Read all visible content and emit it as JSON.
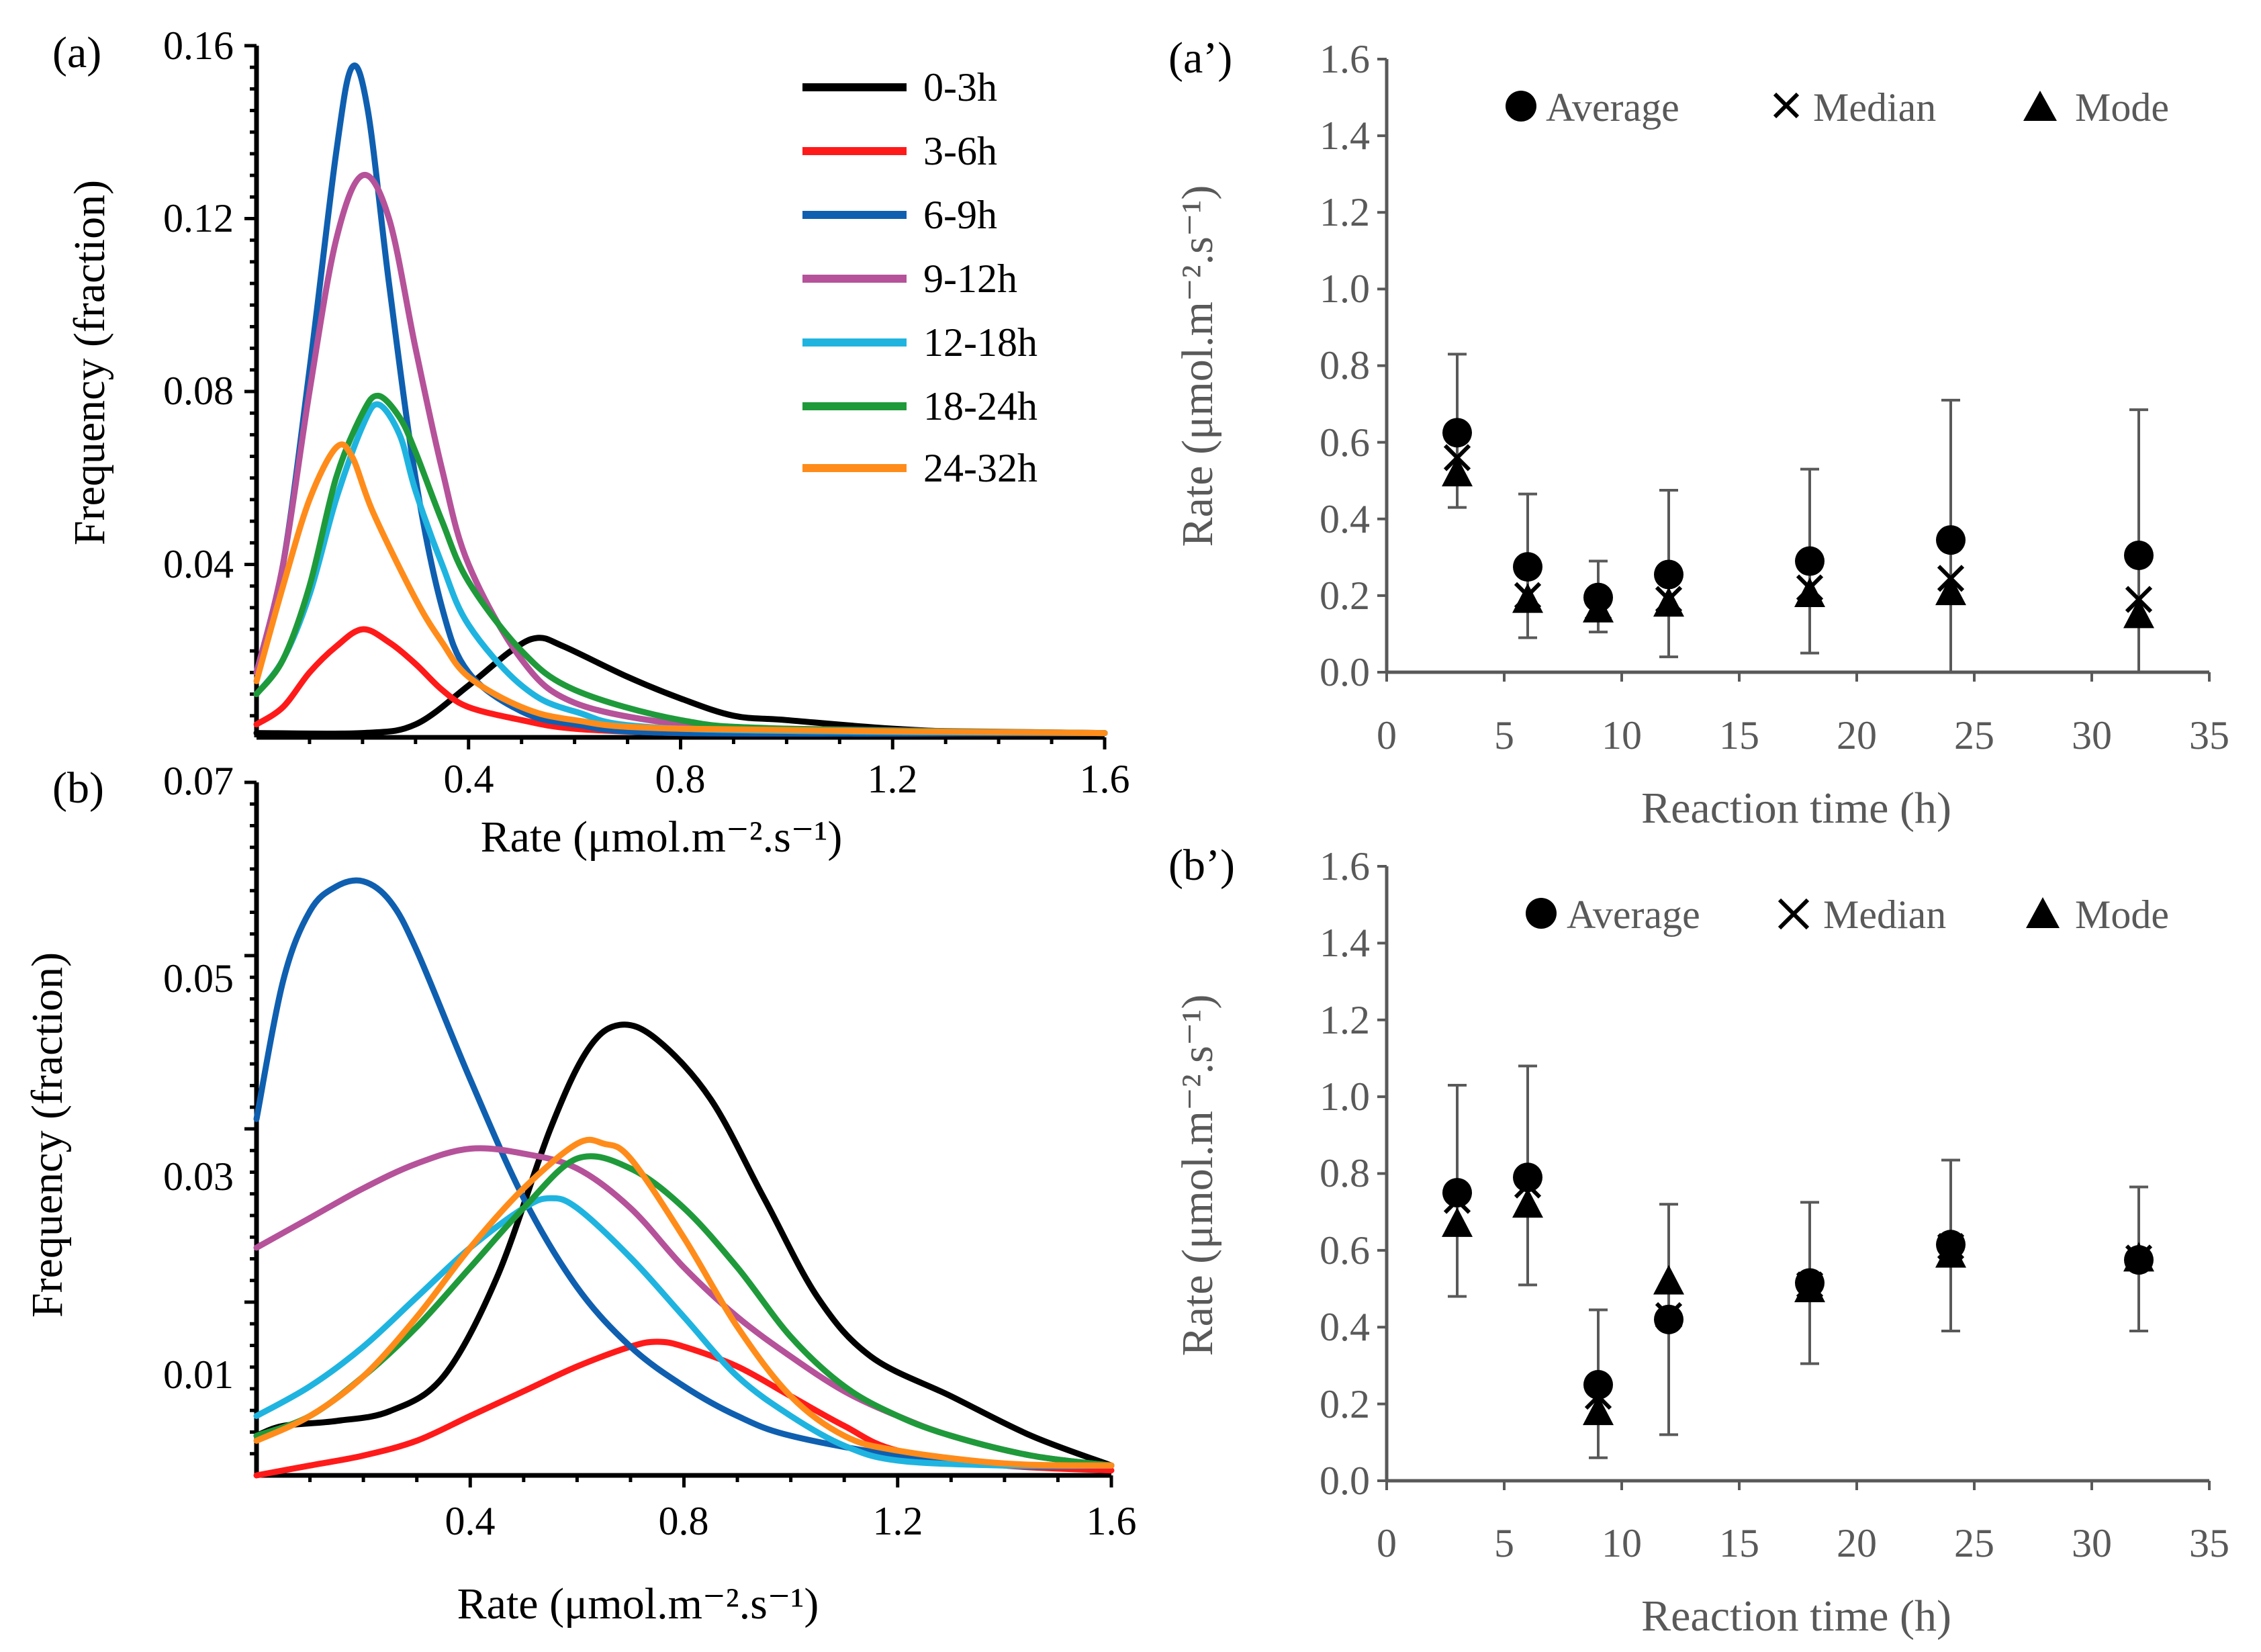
{
  "colors": {
    "0-3h": "#000000",
    "3-6h": "#ff1a1a",
    "6-9h": "#0f5fb0",
    "9-12h": "#b5529a",
    "12-18h": "#1fb4e0",
    "18-24h": "#1f9a3a",
    "24-32h": "#ff8c1a",
    "axis_gray": "#595959"
  },
  "chart_data": [
    {
      "id": "a",
      "panel_label": "(a)",
      "type": "line",
      "xlabel": "Rate (μmol.m⁻².s⁻¹)",
      "ylabel": "Frequency (fraction)",
      "xlim": [
        0,
        1.6
      ],
      "ylim": [
        0,
        0.16
      ],
      "xticks": [
        "0.4",
        "0.8",
        "1.2",
        "1.6"
      ],
      "yticks": [
        "0.04",
        "0.08",
        "0.12",
        "0.16"
      ],
      "legend": [
        "0-3h",
        "3-6h",
        "6-9h",
        "9-12h",
        "12-18h",
        "18-24h",
        "24-32h"
      ],
      "series": [
        {
          "name": "0-3h",
          "points": [
            [
              0,
              0.001
            ],
            [
              0.2,
              0.001
            ],
            [
              0.3,
              0.003
            ],
            [
              0.4,
              0.012
            ],
            [
              0.48,
              0.02
            ],
            [
              0.53,
              0.023
            ],
            [
              0.58,
              0.021
            ],
            [
              0.7,
              0.014
            ],
            [
              0.8,
              0.009
            ],
            [
              0.9,
              0.005
            ],
            [
              1.0,
              0.004
            ],
            [
              1.2,
              0.002
            ],
            [
              1.4,
              0.001
            ],
            [
              1.6,
              0.001
            ]
          ]
        },
        {
          "name": "3-6h",
          "points": [
            [
              0,
              0.003
            ],
            [
              0.05,
              0.007
            ],
            [
              0.1,
              0.015
            ],
            [
              0.15,
              0.021
            ],
            [
              0.2,
              0.025
            ],
            [
              0.25,
              0.022
            ],
            [
              0.3,
              0.017
            ],
            [
              0.35,
              0.011
            ],
            [
              0.4,
              0.007
            ],
            [
              0.5,
              0.004
            ],
            [
              0.6,
              0.002
            ],
            [
              0.8,
              0.001
            ],
            [
              1.0,
              0.001
            ],
            [
              1.6,
              0.001
            ]
          ]
        },
        {
          "name": "6-9h",
          "points": [
            [
              0,
              0.015
            ],
            [
              0.05,
              0.04
            ],
            [
              0.1,
              0.085
            ],
            [
              0.15,
              0.135
            ],
            [
              0.18,
              0.155
            ],
            [
              0.21,
              0.145
            ],
            [
              0.25,
              0.105
            ],
            [
              0.3,
              0.06
            ],
            [
              0.35,
              0.03
            ],
            [
              0.4,
              0.015
            ],
            [
              0.5,
              0.006
            ],
            [
              0.6,
              0.003
            ],
            [
              0.8,
              0.001
            ],
            [
              1.6,
              0.001
            ]
          ]
        },
        {
          "name": "9-12h",
          "points": [
            [
              0,
              0.015
            ],
            [
              0.05,
              0.04
            ],
            [
              0.1,
              0.08
            ],
            [
              0.15,
              0.115
            ],
            [
              0.2,
              0.13
            ],
            [
              0.25,
              0.12
            ],
            [
              0.3,
              0.09
            ],
            [
              0.35,
              0.062
            ],
            [
              0.4,
              0.04
            ],
            [
              0.5,
              0.018
            ],
            [
              0.6,
              0.008
            ],
            [
              0.8,
              0.003
            ],
            [
              1.0,
              0.002
            ],
            [
              1.6,
              0.001
            ]
          ]
        },
        {
          "name": "12-18h",
          "points": [
            [
              0,
              0.01
            ],
            [
              0.05,
              0.018
            ],
            [
              0.1,
              0.033
            ],
            [
              0.15,
              0.055
            ],
            [
              0.2,
              0.072
            ],
            [
              0.23,
              0.077
            ],
            [
              0.27,
              0.07
            ],
            [
              0.3,
              0.057
            ],
            [
              0.35,
              0.04
            ],
            [
              0.4,
              0.026
            ],
            [
              0.5,
              0.012
            ],
            [
              0.6,
              0.006
            ],
            [
              0.8,
              0.002
            ],
            [
              1.6,
              0.001
            ]
          ]
        },
        {
          "name": "18-24h",
          "points": [
            [
              0,
              0.01
            ],
            [
              0.05,
              0.018
            ],
            [
              0.1,
              0.035
            ],
            [
              0.15,
              0.06
            ],
            [
              0.2,
              0.075
            ],
            [
              0.23,
              0.079
            ],
            [
              0.27,
              0.074
            ],
            [
              0.3,
              0.066
            ],
            [
              0.35,
              0.05
            ],
            [
              0.4,
              0.036
            ],
            [
              0.5,
              0.02
            ],
            [
              0.6,
              0.011
            ],
            [
              0.8,
              0.004
            ],
            [
              1.0,
              0.002
            ],
            [
              1.6,
              0.001
            ]
          ]
        },
        {
          "name": "24-32h",
          "points": [
            [
              0,
              0.013
            ],
            [
              0.05,
              0.035
            ],
            [
              0.1,
              0.055
            ],
            [
              0.15,
              0.067
            ],
            [
              0.18,
              0.065
            ],
            [
              0.22,
              0.052
            ],
            [
              0.3,
              0.032
            ],
            [
              0.35,
              0.022
            ],
            [
              0.4,
              0.014
            ],
            [
              0.5,
              0.007
            ],
            [
              0.6,
              0.004
            ],
            [
              0.8,
              0.002
            ],
            [
              1.6,
              0.001
            ]
          ]
        }
      ]
    },
    {
      "id": "b",
      "panel_label": "(b)",
      "type": "line",
      "xlabel": "Rate (μmol.m⁻².s⁻¹)",
      "ylabel": "Frequency (fraction)",
      "xlim": [
        0,
        1.6
      ],
      "ylim": [
        0,
        0.07
      ],
      "xticks": [
        "0.4",
        "0.8",
        "1.2",
        "1.6"
      ],
      "yticks": [
        "0.01",
        "0.03",
        "0.05",
        "0.07"
      ],
      "series": [
        {
          "name": "0-3h",
          "points": [
            [
              0,
              0.004
            ],
            [
              0.05,
              0.005
            ],
            [
              0.15,
              0.0055
            ],
            [
              0.25,
              0.0065
            ],
            [
              0.35,
              0.01
            ],
            [
              0.45,
              0.02
            ],
            [
              0.55,
              0.035
            ],
            [
              0.62,
              0.043
            ],
            [
              0.68,
              0.0455
            ],
            [
              0.75,
              0.044
            ],
            [
              0.85,
              0.038
            ],
            [
              0.95,
              0.028
            ],
            [
              1.05,
              0.018
            ],
            [
              1.15,
              0.012
            ],
            [
              1.3,
              0.008
            ],
            [
              1.45,
              0.004
            ],
            [
              1.6,
              0.001
            ]
          ]
        },
        {
          "name": "3-6h",
          "points": [
            [
              0,
              0
            ],
            [
              0.1,
              0.001
            ],
            [
              0.2,
              0.002
            ],
            [
              0.3,
              0.0035
            ],
            [
              0.4,
              0.006
            ],
            [
              0.5,
              0.0085
            ],
            [
              0.6,
              0.011
            ],
            [
              0.7,
              0.013
            ],
            [
              0.75,
              0.0135
            ],
            [
              0.8,
              0.013
            ],
            [
              0.9,
              0.011
            ],
            [
              1.0,
              0.008
            ],
            [
              1.1,
              0.005
            ],
            [
              1.2,
              0.0025
            ],
            [
              1.4,
              0.001
            ],
            [
              1.6,
              0.0005
            ]
          ]
        },
        {
          "name": "6-9h",
          "points": [
            [
              0,
              0.036
            ],
            [
              0.05,
              0.05
            ],
            [
              0.1,
              0.057
            ],
            [
              0.15,
              0.0595
            ],
            [
              0.2,
              0.06
            ],
            [
              0.25,
              0.058
            ],
            [
              0.3,
              0.053
            ],
            [
              0.4,
              0.04
            ],
            [
              0.5,
              0.028
            ],
            [
              0.6,
              0.019
            ],
            [
              0.7,
              0.013
            ],
            [
              0.8,
              0.009
            ],
            [
              0.9,
              0.006
            ],
            [
              1.0,
              0.004
            ],
            [
              1.2,
              0.002
            ],
            [
              1.4,
              0.001
            ],
            [
              1.6,
              0.001
            ]
          ]
        },
        {
          "name": "9-12h",
          "points": [
            [
              0,
              0.023
            ],
            [
              0.1,
              0.026
            ],
            [
              0.2,
              0.029
            ],
            [
              0.3,
              0.0315
            ],
            [
              0.4,
              0.033
            ],
            [
              0.5,
              0.0325
            ],
            [
              0.6,
              0.031
            ],
            [
              0.7,
              0.027
            ],
            [
              0.8,
              0.021
            ],
            [
              0.9,
              0.016
            ],
            [
              1.0,
              0.012
            ],
            [
              1.1,
              0.0085
            ],
            [
              1.2,
              0.006
            ],
            [
              1.3,
              0.004
            ],
            [
              1.45,
              0.002
            ],
            [
              1.6,
              0.001
            ]
          ]
        },
        {
          "name": "12-18h",
          "points": [
            [
              0,
              0.006
            ],
            [
              0.1,
              0.009
            ],
            [
              0.2,
              0.013
            ],
            [
              0.3,
              0.018
            ],
            [
              0.4,
              0.023
            ],
            [
              0.5,
              0.027
            ],
            [
              0.55,
              0.028
            ],
            [
              0.6,
              0.027
            ],
            [
              0.7,
              0.022
            ],
            [
              0.8,
              0.016
            ],
            [
              0.9,
              0.01
            ],
            [
              1.0,
              0.006
            ],
            [
              1.1,
              0.003
            ],
            [
              1.2,
              0.0015
            ],
            [
              1.4,
              0.001
            ],
            [
              1.6,
              0.001
            ]
          ]
        },
        {
          "name": "18-24h",
          "points": [
            [
              0,
              0.004
            ],
            [
              0.1,
              0.006
            ],
            [
              0.2,
              0.01
            ],
            [
              0.3,
              0.015
            ],
            [
              0.4,
              0.021
            ],
            [
              0.5,
              0.027
            ],
            [
              0.6,
              0.032
            ],
            [
              0.7,
              0.031
            ],
            [
              0.8,
              0.027
            ],
            [
              0.9,
              0.021
            ],
            [
              1.0,
              0.014
            ],
            [
              1.1,
              0.009
            ],
            [
              1.2,
              0.006
            ],
            [
              1.3,
              0.004
            ],
            [
              1.45,
              0.002
            ],
            [
              1.6,
              0.001
            ]
          ]
        },
        {
          "name": "24-32h",
          "points": [
            [
              0,
              0.0035
            ],
            [
              0.1,
              0.006
            ],
            [
              0.2,
              0.01
            ],
            [
              0.3,
              0.016
            ],
            [
              0.4,
              0.023
            ],
            [
              0.5,
              0.029
            ],
            [
              0.6,
              0.0335
            ],
            [
              0.65,
              0.0335
            ],
            [
              0.7,
              0.032
            ],
            [
              0.8,
              0.024
            ],
            [
              0.9,
              0.015
            ],
            [
              1.0,
              0.008
            ],
            [
              1.1,
              0.004
            ],
            [
              1.2,
              0.0025
            ],
            [
              1.4,
              0.0012
            ],
            [
              1.6,
              0.001
            ]
          ]
        }
      ]
    },
    {
      "id": "a_prime",
      "panel_label": "(a’)",
      "type": "scatter",
      "xlabel": "Reaction time (h)",
      "ylabel": "Rate (μmol.m⁻².s⁻¹)",
      "xlim": [
        0,
        35
      ],
      "ylim": [
        0,
        1.6
      ],
      "xticks": [
        "0",
        "5",
        "10",
        "15",
        "20",
        "25",
        "30",
        "35"
      ],
      "yticks": [
        "0.0",
        "0.2",
        "0.4",
        "0.6",
        "0.8",
        "1.0",
        "1.2",
        "1.4",
        "1.6"
      ],
      "legend": [
        "Average",
        "Median",
        "Mode"
      ],
      "x": [
        3,
        6,
        9,
        12,
        18,
        24,
        32
      ],
      "average": [
        0.625,
        0.275,
        0.195,
        0.255,
        0.29,
        0.345,
        0.305
      ],
      "median": [
        0.56,
        0.2,
        0.17,
        0.19,
        0.22,
        0.245,
        0.19
      ],
      "mode": [
        0.52,
        0.19,
        0.165,
        0.18,
        0.205,
        0.21,
        0.15
      ],
      "error_low": [
        0.43,
        0.09,
        0.105,
        0.04,
        0.05,
        0.0,
        0.0
      ],
      "error_high": [
        0.83,
        0.465,
        0.29,
        0.475,
        0.53,
        0.71,
        0.685
      ]
    },
    {
      "id": "b_prime",
      "panel_label": "(b’)",
      "type": "scatter",
      "xlabel": "Reaction time (h)",
      "ylabel": "Rate (μmol.m⁻².s⁻¹)",
      "xlim": [
        0,
        35
      ],
      "ylim": [
        0,
        1.6
      ],
      "xticks": [
        "0",
        "5",
        "10",
        "15",
        "20",
        "25",
        "30",
        "35"
      ],
      "yticks": [
        "0.0",
        "0.2",
        "0.4",
        "0.6",
        "0.8",
        "1.0",
        "1.2",
        "1.4",
        "1.6"
      ],
      "legend": [
        "Average",
        "Median",
        "Mode"
      ],
      "x": [
        3,
        6,
        9,
        12,
        18,
        24,
        32
      ],
      "average": [
        0.75,
        0.79,
        0.25,
        0.42,
        0.515,
        0.615,
        0.575
      ],
      "median": [
        0.73,
        0.77,
        0.22,
        0.43,
        0.51,
        0.61,
        0.58
      ],
      "mode": [
        0.67,
        0.72,
        0.18,
        0.52,
        0.5,
        0.59,
        0.58
      ],
      "error_low": [
        0.48,
        0.51,
        0.06,
        0.12,
        0.305,
        0.39,
        0.39
      ],
      "error_high": [
        1.03,
        1.08,
        0.445,
        0.72,
        0.725,
        0.835,
        0.765
      ]
    }
  ]
}
